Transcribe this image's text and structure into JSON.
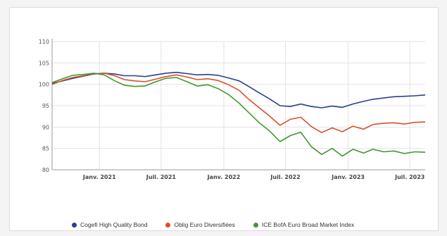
{
  "chart_data": {
    "type": "line",
    "y_ticks": [
      "110",
      "105",
      "100",
      "95",
      "90",
      "85",
      "80"
    ],
    "ylim": [
      80,
      110
    ],
    "x_ticks": [
      {
        "label": "Janv. 2021",
        "x": "2021-01-01"
      },
      {
        "label": "Juil. 2021",
        "x": "2021-07-01"
      },
      {
        "label": "Janv. 2022",
        "x": "2022-01-01"
      },
      {
        "label": "Juil. 2022",
        "x": "2022-07-01"
      },
      {
        "label": "Janv. 2023",
        "x": "2023-01-01"
      },
      {
        "label": "Juil. 2023",
        "x": "2023-07-01"
      }
    ],
    "xlim": [
      "2020-08-15",
      "2023-08-15"
    ],
    "grid": true,
    "legend_position": "bottom",
    "series": [
      {
        "name": "Cogefi High Quality Bond",
        "color": "#2b3f8f",
        "points": [
          [
            "2020-08-15",
            100.2
          ],
          [
            "2020-09-15",
            100.8
          ],
          [
            "2020-10-15",
            101.4
          ],
          [
            "2020-11-15",
            101.9
          ],
          [
            "2020-12-15",
            102.4
          ],
          [
            "2021-01-15",
            102.6
          ],
          [
            "2021-02-15",
            102.4
          ],
          [
            "2021-03-15",
            102.0
          ],
          [
            "2021-04-15",
            102.0
          ],
          [
            "2021-05-15",
            101.8
          ],
          [
            "2021-06-15",
            102.2
          ],
          [
            "2021-07-15",
            102.6
          ],
          [
            "2021-08-15",
            102.8
          ],
          [
            "2021-09-15",
            102.5
          ],
          [
            "2021-10-15",
            102.2
          ],
          [
            "2021-11-15",
            102.3
          ],
          [
            "2021-12-15",
            102.1
          ],
          [
            "2022-01-15",
            101.5
          ],
          [
            "2022-02-15",
            100.8
          ],
          [
            "2022-03-15",
            99.5
          ],
          [
            "2022-04-15",
            98.0
          ],
          [
            "2022-05-15",
            96.6
          ],
          [
            "2022-06-15",
            95.0
          ],
          [
            "2022-07-15",
            94.8
          ],
          [
            "2022-08-15",
            95.4
          ],
          [
            "2022-09-15",
            94.8
          ],
          [
            "2022-10-15",
            94.5
          ],
          [
            "2022-11-15",
            94.9
          ],
          [
            "2022-12-15",
            94.6
          ],
          [
            "2023-01-15",
            95.4
          ],
          [
            "2023-02-15",
            96.0
          ],
          [
            "2023-03-15",
            96.5
          ],
          [
            "2023-04-15",
            96.8
          ],
          [
            "2023-05-15",
            97.1
          ],
          [
            "2023-06-15",
            97.2
          ],
          [
            "2023-07-15",
            97.3
          ],
          [
            "2023-08-15",
            97.5
          ]
        ]
      },
      {
        "name": "Oblig Euro Diversifiées",
        "color": "#d9502e",
        "points": [
          [
            "2020-08-15",
            100.0
          ],
          [
            "2020-09-15",
            100.9
          ],
          [
            "2020-10-15",
            101.6
          ],
          [
            "2020-11-15",
            102.0
          ],
          [
            "2020-12-15",
            102.5
          ],
          [
            "2021-01-15",
            102.6
          ],
          [
            "2021-02-15",
            102.0
          ],
          [
            "2021-03-15",
            101.1
          ],
          [
            "2021-04-15",
            100.8
          ],
          [
            "2021-05-15",
            100.6
          ],
          [
            "2021-06-15",
            101.2
          ],
          [
            "2021-07-15",
            101.8
          ],
          [
            "2021-08-15",
            102.2
          ],
          [
            "2021-09-15",
            101.7
          ],
          [
            "2021-10-15",
            101.1
          ],
          [
            "2021-11-15",
            101.3
          ],
          [
            "2021-12-15",
            100.9
          ],
          [
            "2022-01-15",
            99.9
          ],
          [
            "2022-02-15",
            98.6
          ],
          [
            "2022-03-15",
            96.5
          ],
          [
            "2022-04-15",
            94.5
          ],
          [
            "2022-05-15",
            92.6
          ],
          [
            "2022-06-15",
            90.4
          ],
          [
            "2022-07-15",
            91.8
          ],
          [
            "2022-08-15",
            92.3
          ],
          [
            "2022-09-15",
            90.1
          ],
          [
            "2022-10-15",
            88.7
          ],
          [
            "2022-11-15",
            89.8
          ],
          [
            "2022-12-15",
            88.9
          ],
          [
            "2023-01-15",
            90.2
          ],
          [
            "2023-02-15",
            89.5
          ],
          [
            "2023-03-15",
            90.6
          ],
          [
            "2023-04-15",
            90.9
          ],
          [
            "2023-05-15",
            91.0
          ],
          [
            "2023-06-15",
            90.7
          ],
          [
            "2023-07-15",
            91.1
          ],
          [
            "2023-08-15",
            91.2
          ]
        ]
      },
      {
        "name": "ICE BofA Euro Broad Market Index",
        "color": "#3f9a2f",
        "points": [
          [
            "2020-08-15",
            100.4
          ],
          [
            "2020-09-15",
            101.3
          ],
          [
            "2020-10-15",
            102.1
          ],
          [
            "2020-11-15",
            102.3
          ],
          [
            "2020-12-15",
            102.6
          ],
          [
            "2021-01-15",
            102.2
          ],
          [
            "2021-02-15",
            100.8
          ],
          [
            "2021-03-15",
            99.8
          ],
          [
            "2021-04-15",
            99.5
          ],
          [
            "2021-05-15",
            99.6
          ],
          [
            "2021-06-15",
            100.6
          ],
          [
            "2021-07-15",
            101.4
          ],
          [
            "2021-08-15",
            101.6
          ],
          [
            "2021-09-15",
            100.6
          ],
          [
            "2021-10-15",
            99.6
          ],
          [
            "2021-11-15",
            99.9
          ],
          [
            "2021-12-15",
            99.0
          ],
          [
            "2022-01-15",
            97.6
          ],
          [
            "2022-02-15",
            95.6
          ],
          [
            "2022-03-15",
            93.4
          ],
          [
            "2022-04-15",
            91.0
          ],
          [
            "2022-05-15",
            89.1
          ],
          [
            "2022-06-15",
            86.6
          ],
          [
            "2022-07-15",
            88.0
          ],
          [
            "2022-08-15",
            88.8
          ],
          [
            "2022-09-15",
            85.4
          ],
          [
            "2022-10-15",
            83.6
          ],
          [
            "2022-11-15",
            85.0
          ],
          [
            "2022-12-15",
            83.2
          ],
          [
            "2023-01-15",
            84.8
          ],
          [
            "2023-02-15",
            83.9
          ],
          [
            "2023-03-15",
            84.8
          ],
          [
            "2023-04-15",
            84.2
          ],
          [
            "2023-05-15",
            84.4
          ],
          [
            "2023-06-15",
            83.8
          ],
          [
            "2023-07-15",
            84.2
          ],
          [
            "2023-08-15",
            84.1
          ]
        ]
      }
    ]
  }
}
